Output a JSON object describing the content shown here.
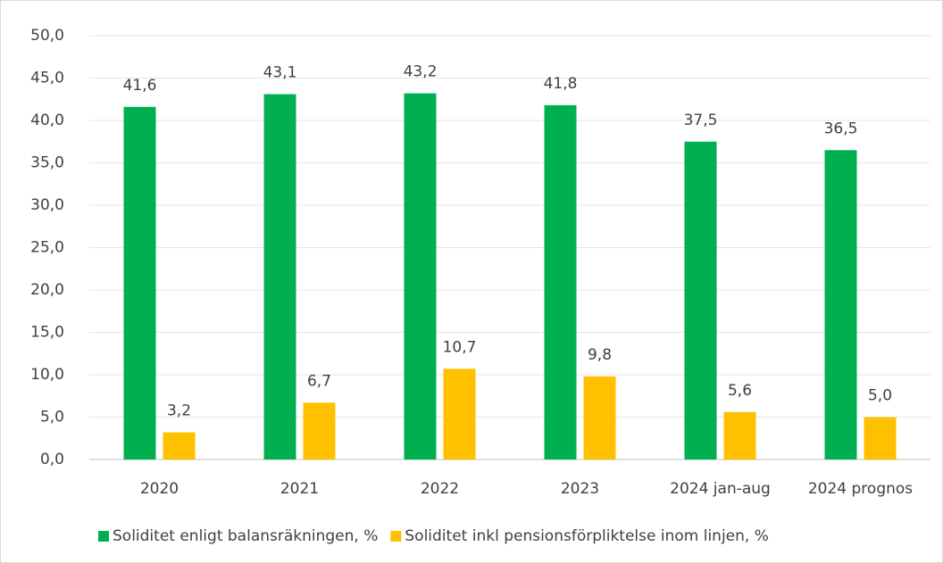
{
  "chart_data": {
    "type": "bar",
    "categories": [
      "2020",
      "2021",
      "2022",
      "2023",
      "2024 jan-aug",
      "2024 prognos"
    ],
    "series": [
      {
        "name": "Soliditet enligt balansräkningen, %",
        "color": "#00b050",
        "values": [
          41.6,
          43.1,
          43.2,
          41.8,
          37.5,
          36.5
        ],
        "value_labels": [
          "41,6",
          "43,1",
          "43,2",
          "41,8",
          "37,5",
          "36,5"
        ]
      },
      {
        "name": "Soliditet inkl pensionsförpliktelse inom linjen, %",
        "color": "#ffc000",
        "values": [
          3.2,
          6.7,
          10.7,
          9.8,
          5.6,
          5.0
        ],
        "value_labels": [
          "3,2",
          "6,7",
          "10,7",
          "9,8",
          "5,6",
          "5,0"
        ]
      }
    ],
    "ylim": [
      0,
      50
    ],
    "yticks": [
      {
        "value": 0,
        "label": "0,0"
      },
      {
        "value": 5,
        "label": "5,0"
      },
      {
        "value": 10,
        "label": "10,0"
      },
      {
        "value": 15,
        "label": "15,0"
      },
      {
        "value": 20,
        "label": "20,0"
      },
      {
        "value": 25,
        "label": "25,0"
      },
      {
        "value": 30,
        "label": "30,0"
      },
      {
        "value": 35,
        "label": "35,0"
      },
      {
        "value": 40,
        "label": "40,0"
      },
      {
        "value": 45,
        "label": "45,0"
      },
      {
        "value": 50,
        "label": "50,0"
      }
    ],
    "grid": true,
    "legend": "bottom"
  }
}
